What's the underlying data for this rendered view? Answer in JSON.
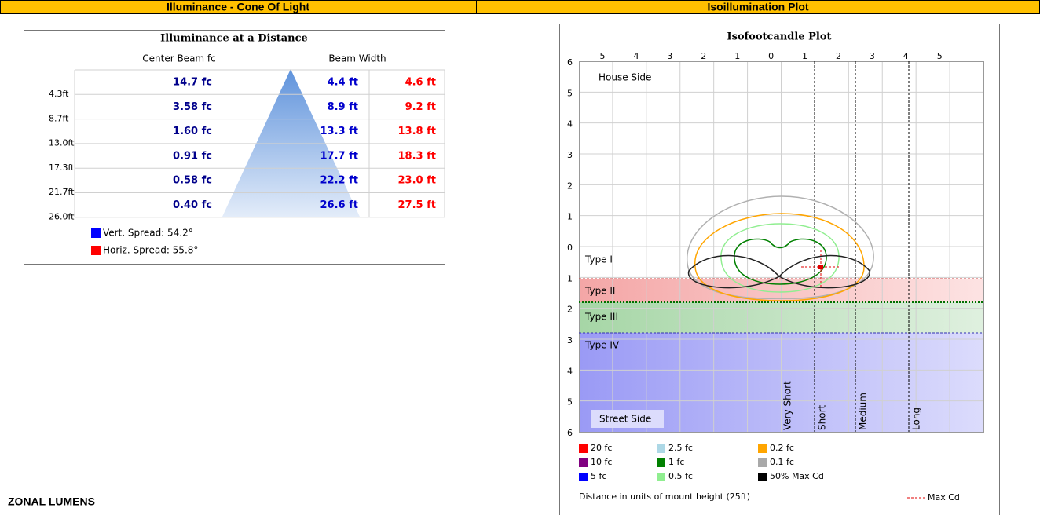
{
  "header": {
    "left": "Illuminance - Cone Of Light",
    "right": "Isoillumination Plot"
  },
  "cone": {
    "title": "Illuminance at a Distance",
    "col_headers": [
      "Center Beam fc",
      "Beam Width"
    ],
    "rows": [
      {
        "distance": "4.3ft",
        "fc": "14.7 fc",
        "vert": "4.4 ft",
        "horiz": "4.6 ft"
      },
      {
        "distance": "8.7ft",
        "fc": "3.58 fc",
        "vert": "8.9 ft",
        "horiz": "9.2 ft"
      },
      {
        "distance": "13.0ft",
        "fc": "1.60 fc",
        "vert": "13.3 ft",
        "horiz": "13.8 ft"
      },
      {
        "distance": "17.3ft",
        "fc": "0.91 fc",
        "vert": "17.7 ft",
        "horiz": "18.3 ft"
      },
      {
        "distance": "21.7ft",
        "fc": "0.58 fc",
        "vert": "22.2 ft",
        "horiz": "23.0 ft"
      },
      {
        "distance": "26.0ft",
        "fc": "0.40 fc",
        "vert": "26.6 ft",
        "horiz": "27.5 ft"
      }
    ],
    "legend": [
      {
        "label": "Vert. Spread: 54.2°",
        "color": "#0000ff"
      },
      {
        "label": "Horiz. Spread: 55.8°",
        "color": "#ff0000"
      }
    ]
  },
  "iso": {
    "title": "Isofootcandle Plot",
    "x_labels": [
      "5",
      "4",
      "3",
      "2",
      "1",
      "0",
      "1",
      "2",
      "3",
      "4",
      "5"
    ],
    "y_labels": [
      "6",
      "5",
      "4",
      "3",
      "2",
      "1",
      "0",
      "1",
      "2",
      "3",
      "4",
      "5",
      "6"
    ],
    "house_side": "House Side",
    "street_side": "Street Side",
    "types": [
      "Type I",
      "Type II",
      "Type III",
      "Type IV"
    ],
    "distances": [
      "Very Short",
      "Short",
      "Medium",
      "Long"
    ],
    "legend": [
      {
        "label": "20 fc",
        "color": "#ff0000"
      },
      {
        "label": "2.5 fc",
        "color": "#add8e6"
      },
      {
        "label": "0.2 fc",
        "color": "#ffa500"
      },
      {
        "label": "10 fc",
        "color": "#800080"
      },
      {
        "label": "1 fc",
        "color": "#008000"
      },
      {
        "label": "0.1 fc",
        "color": "#a9a9a9"
      },
      {
        "label": "5 fc",
        "color": "#0000ff"
      },
      {
        "label": "0.5 fc",
        "color": "#90ee90"
      },
      {
        "label": "50% Max Cd",
        "color": "#000000"
      }
    ],
    "footer": "Distance in units of mount height (25ft)",
    "max_cd": "Max Cd"
  },
  "section": "ZONAL LUMENS"
}
